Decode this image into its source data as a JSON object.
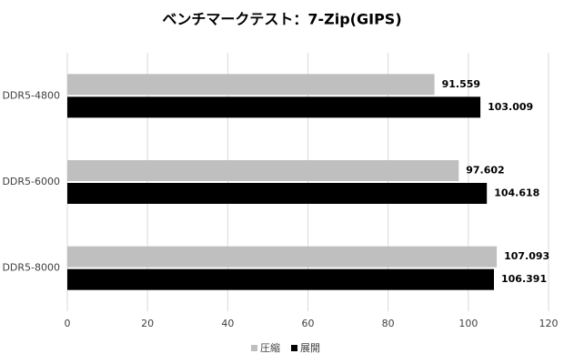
{
  "chart_data": {
    "type": "hbar",
    "title": "ベンチマークテスト：7-Zip(GIPS)",
    "categories": [
      "DDR5-4800",
      "DDR5-6000",
      "DDR5-8000"
    ],
    "series": [
      {
        "name": "圧縮",
        "color": "#bfbfbf",
        "values": [
          91.559,
          97.602,
          107.093
        ]
      },
      {
        "name": "展開",
        "color": "#000000",
        "values": [
          103.009,
          104.618,
          106.391
        ]
      }
    ],
    "xlim": [
      0,
      120
    ],
    "xticks": [
      0,
      20,
      40,
      60,
      80,
      100,
      120
    ],
    "grid": true
  }
}
